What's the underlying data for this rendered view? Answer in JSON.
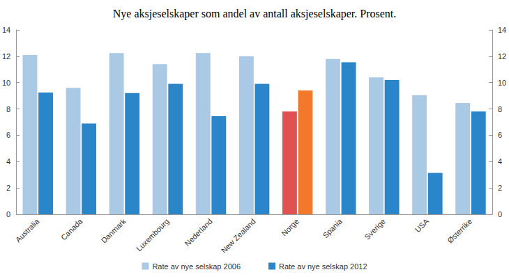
{
  "chart_data": {
    "type": "bar",
    "title": "Nye aksjeselskaper som andel av antall aksjeselskaper. Prosent.",
    "categories": [
      "Australia",
      "Canada",
      "Danmark",
      "Luxembourg",
      "Nederland",
      "New Zealand",
      "Norge",
      "Spania",
      "Sverige",
      "USA",
      "Østerrike"
    ],
    "series": [
      {
        "name": "Rate av nye selskap 2006",
        "color": "#a9c9e5",
        "colors": [
          "#a9c9e5",
          "#a9c9e5",
          "#a9c9e5",
          "#a9c9e5",
          "#a9c9e5",
          "#a9c9e5",
          "#e05252",
          "#a9c9e5",
          "#a9c9e5",
          "#a9c9e5",
          "#a9c9e5"
        ],
        "values": [
          12.1,
          9.6,
          12.25,
          11.4,
          12.25,
          12.0,
          7.8,
          11.8,
          10.4,
          9.05,
          8.45
        ]
      },
      {
        "name": "Rate av nye selskap 2012",
        "color": "#2a86c9",
        "colors": [
          "#2a86c9",
          "#2a86c9",
          "#2a86c9",
          "#2a86c9",
          "#2a86c9",
          "#2a86c9",
          "#f2782a",
          "#2a86c9",
          "#2a86c9",
          "#2a86c9",
          "#2a86c9"
        ],
        "values": [
          9.25,
          6.9,
          9.2,
          9.9,
          7.45,
          9.9,
          9.4,
          11.55,
          10.2,
          3.15,
          7.8
        ]
      }
    ],
    "ylim": [
      0,
      14
    ],
    "yticks": [
      0,
      2,
      4,
      6,
      8,
      10,
      12,
      14
    ],
    "y2lim": [
      0,
      14
    ],
    "y2ticks": [
      0,
      2,
      4,
      6,
      8,
      10,
      12,
      14
    ],
    "grid": false,
    "legend": "bottom"
  }
}
